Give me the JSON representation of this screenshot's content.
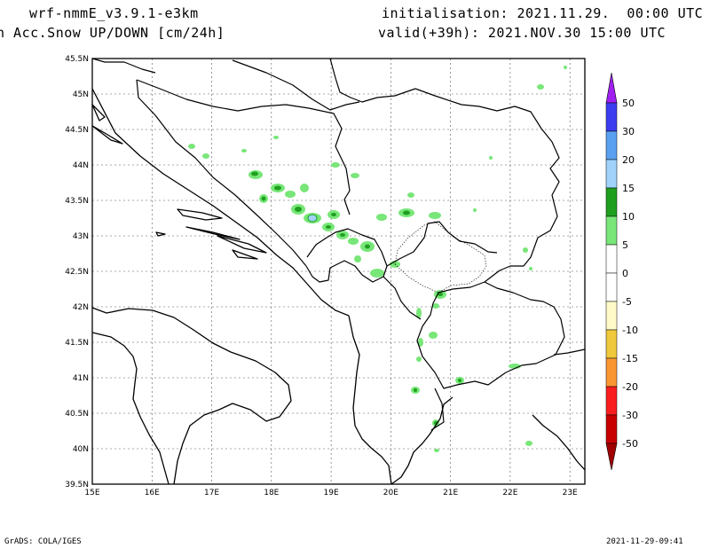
{
  "header": {
    "model": "wrf-nmmE_v3.9.1-e3km",
    "variable": "n Acc.Snow UP/DOWN [cm/24h]",
    "init": "initialisation: 2021.11.29.  00:00 UTC",
    "valid": "valid(+39h): 2021.NOV.30 15:00 UTC"
  },
  "footer": {
    "credit": "GrADS: COLA/IGES",
    "timestamp": "2021-11-29-09:41"
  },
  "map": {
    "lon_labels": [
      "15E",
      "16E",
      "17E",
      "18E",
      "19E",
      "20E",
      "21E",
      "22E",
      "23E"
    ],
    "lat_labels": [
      "45.5N",
      "45N",
      "44.5N",
      "44N",
      "43.5N",
      "43N",
      "42.5N",
      "42N",
      "41.5N",
      "41N",
      "40.5N",
      "40N",
      "39.5N"
    ]
  },
  "colorbar": {
    "labels": [
      "50",
      "30",
      "20",
      "15",
      "10",
      "5",
      "0",
      "-5",
      "-10",
      "-15",
      "-20",
      "-30",
      "-50"
    ],
    "colors": {
      "top_arrow": "#a020f0",
      "c50_30": "#3c3cf0",
      "c30_20": "#5aa0f0",
      "c20_15": "#a0d2fa",
      "c15_10": "#1ea01e",
      "c10_5": "#78e678",
      "c5_0": "#ffffff",
      "c0_m5": "#ffffff",
      "cm5_m10": "#fffac8",
      "cm10_m15": "#f0c83c",
      "cm15_m20": "#fa9632",
      "cm20_m30": "#fa1e1e",
      "cm30_m50": "#c80000",
      "bottom_arrow": "#a00000"
    }
  },
  "snow_colors": {
    "light": "#78e678",
    "mid": "#1ea01e",
    "high": "#a0d2fa"
  }
}
